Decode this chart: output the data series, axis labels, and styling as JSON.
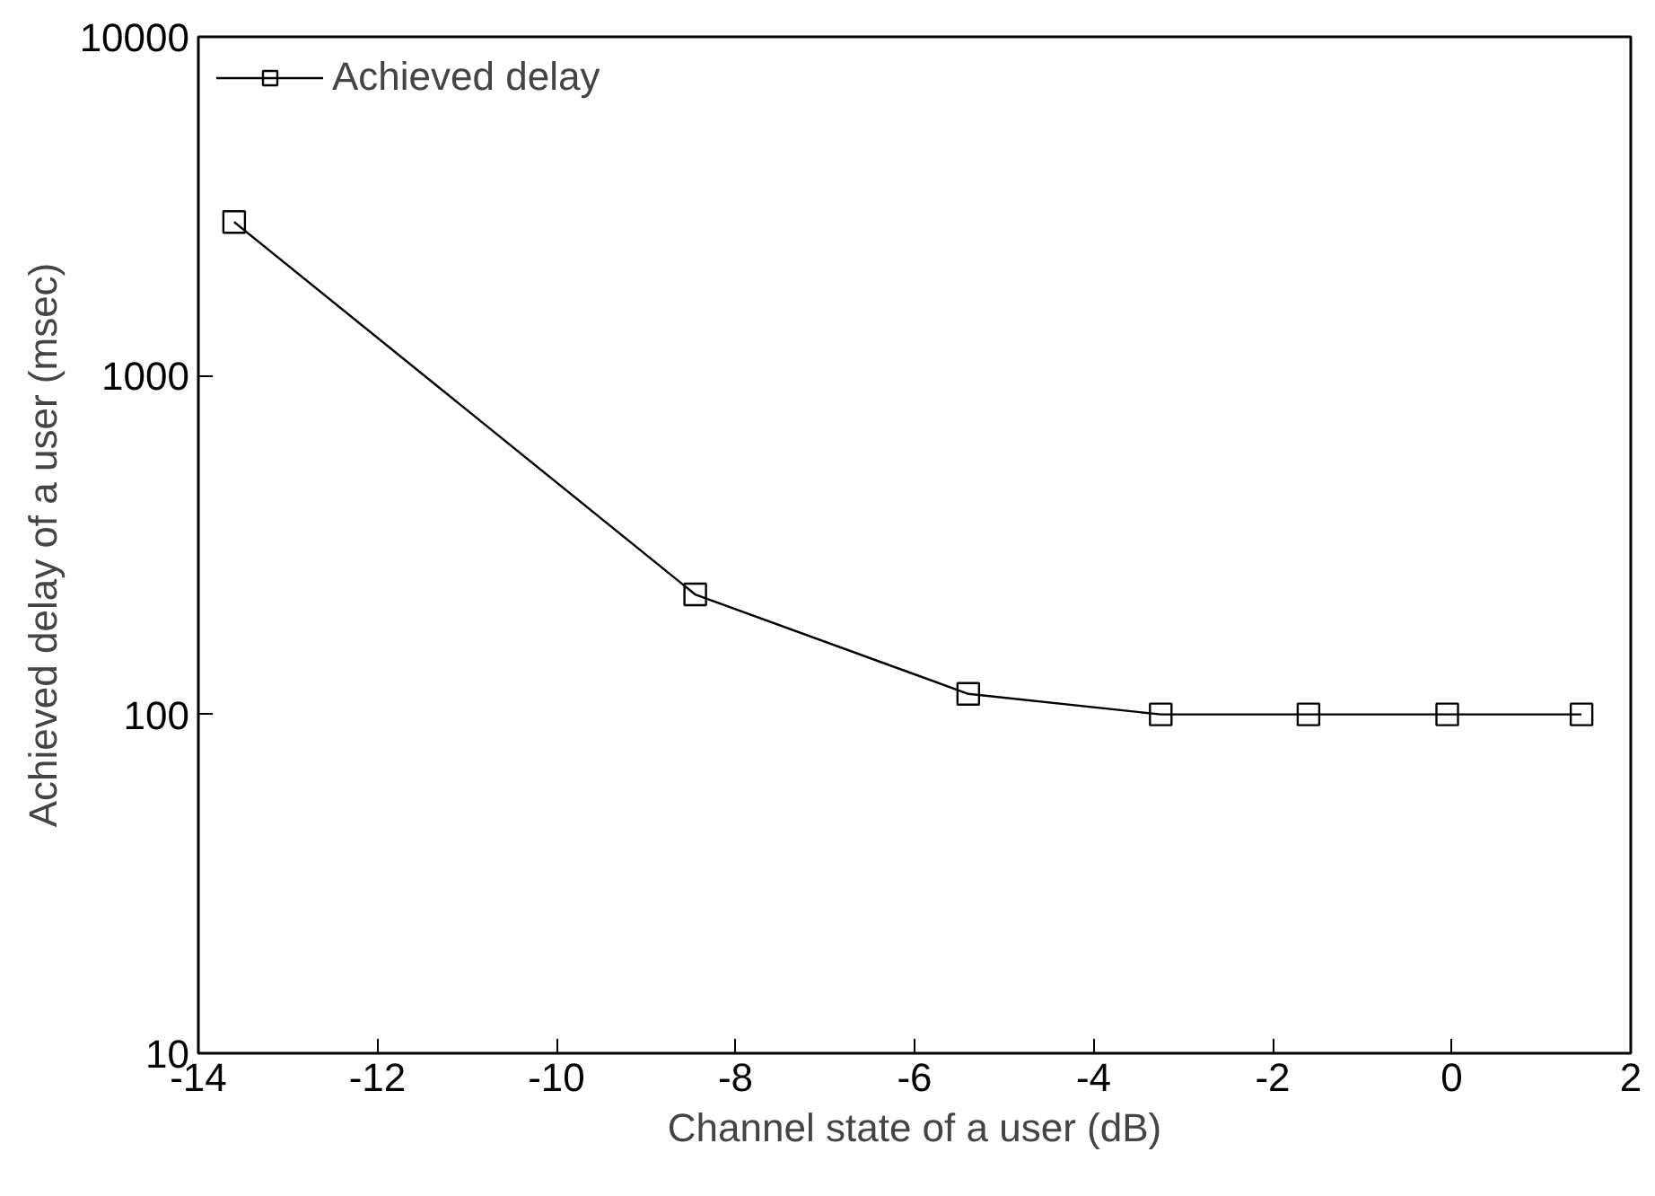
{
  "chart_data": {
    "type": "line",
    "xlabel": "Channel state of a user (dB)",
    "ylabel": "Achieved delay of a user (msec)",
    "x": [
      -13.6,
      -8.45,
      -5.4,
      -3.25,
      -1.6,
      -0.05,
      1.45
    ],
    "series": [
      {
        "name": "Achieved delay",
        "color": "#000000",
        "values": [
          2840,
          226,
          115,
          100,
          100,
          100,
          100
        ]
      }
    ],
    "xlim": [
      -14,
      2
    ],
    "xticks": [
      -14,
      -12,
      -10,
      -8,
      -6,
      -4,
      -2,
      0,
      2
    ],
    "ylim": [
      10,
      10000
    ],
    "yticks": [
      10,
      100,
      1000,
      10000
    ],
    "log": "y",
    "grid": false,
    "legend": "top left",
    "marker": "square",
    "line_style": "solid"
  }
}
